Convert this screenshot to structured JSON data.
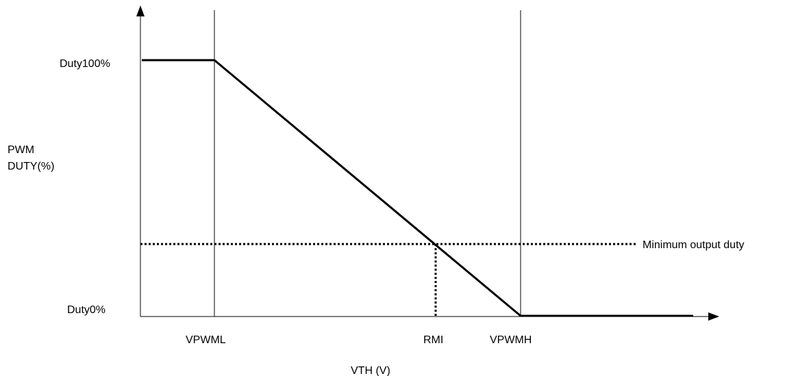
{
  "y_axis": {
    "title_line1": "PWM",
    "title_line2": "DUTY(%)",
    "label_top": "Duty100%",
    "label_bottom": "Duty0%"
  },
  "x_axis": {
    "title": "VTH (V)",
    "tick_low": "VPWML",
    "tick_rmi": "RMI",
    "tick_high": "VPWMH"
  },
  "annotation": {
    "min_duty": "Minimum output duty"
  },
  "colors": {
    "line": "#000000",
    "background": "#ffffff"
  }
}
